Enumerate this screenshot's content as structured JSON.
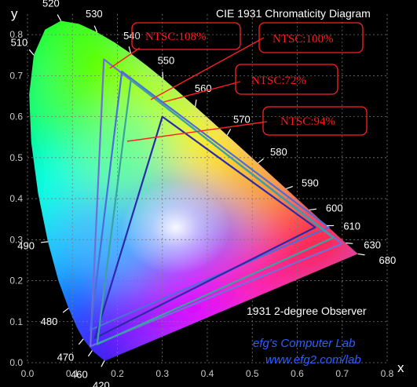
{
  "chart_data": {
    "type": "scatter",
    "title": "CIE 1931 Chromaticity Diagram",
    "subtitle": "1931 2-degree Observer",
    "xlabel": "x",
    "ylabel": "y",
    "xlim": [
      0.0,
      0.8
    ],
    "ylim": [
      0.0,
      0.85
    ],
    "grid": true,
    "x_ticks": [
      "0.0",
      "0.1",
      "0.2",
      "0.3",
      "0.4",
      "0.5",
      "0.6",
      "0.7",
      "0.8"
    ],
    "y_ticks": [
      "0.0",
      "0.1",
      "0.2",
      "0.3",
      "0.4",
      "0.5",
      "0.6",
      "0.7",
      "0.8"
    ],
    "spectral_locus": [
      {
        "nm": "420",
        "x": 0.1714,
        "y": 0.0051
      },
      {
        "nm": "460",
        "x": 0.144,
        "y": 0.0297
      },
      {
        "nm": "470",
        "x": 0.1241,
        "y": 0.0578
      },
      {
        "nm": "480",
        "x": 0.0913,
        "y": 0.1327
      },
      {
        "nm": "490",
        "x": 0.0454,
        "y": 0.295
      },
      {
        "nm": "510",
        "x": 0.0139,
        "y": 0.7502
      },
      {
        "nm": "520",
        "x": 0.0743,
        "y": 0.8338
      },
      {
        "nm": "530",
        "x": 0.1547,
        "y": 0.8059
      },
      {
        "nm": "540",
        "x": 0.2296,
        "y": 0.7543
      },
      {
        "nm": "550",
        "x": 0.3016,
        "y": 0.6923
      },
      {
        "nm": "560",
        "x": 0.3731,
        "y": 0.6245
      },
      {
        "nm": "570",
        "x": 0.4441,
        "y": 0.5547
      },
      {
        "nm": "580",
        "x": 0.5125,
        "y": 0.4866
      },
      {
        "nm": "590",
        "x": 0.5752,
        "y": 0.4242
      },
      {
        "nm": "600",
        "x": 0.627,
        "y": 0.3725
      },
      {
        "nm": "610",
        "x": 0.6658,
        "y": 0.334
      },
      {
        "nm": "630",
        "x": 0.7079,
        "y": 0.292
      },
      {
        "nm": "680",
        "x": 0.7347,
        "y": 0.2653
      }
    ],
    "gamuts": [
      {
        "name": "NTSC:108%",
        "color": "#6f6fd6",
        "points": [
          [
            0.7,
            0.29
          ],
          [
            0.17,
            0.74
          ],
          [
            0.14,
            0.04
          ]
        ]
      },
      {
        "name": "NTSC:100%",
        "color": "#4b6ed8",
        "points": [
          [
            0.67,
            0.33
          ],
          [
            0.21,
            0.71
          ],
          [
            0.14,
            0.08
          ]
        ]
      },
      {
        "name": "NTSC:72%",
        "color": "#2a2aa8",
        "points": [
          [
            0.64,
            0.33
          ],
          [
            0.3,
            0.6
          ],
          [
            0.15,
            0.06
          ]
        ]
      },
      {
        "name": "NTSC:94%",
        "color": "#3aa3a0",
        "points": [
          [
            0.68,
            0.305
          ],
          [
            0.23,
            0.69
          ],
          [
            0.155,
            0.045
          ]
        ]
      }
    ],
    "callouts": [
      "NTSC:108%",
      "NTSC:100%",
      "NTSC:72%",
      "NTSC:94%"
    ]
  },
  "credits": {
    "lab": "efg's Computer Lab",
    "url": "www.efg2.com/lab"
  },
  "colors": {
    "background": "#000000",
    "grid": "#7a7a7a",
    "callout_border": "#ff2020",
    "callout_text": "#ff1a1a",
    "credit_text": "#2c5fff"
  }
}
